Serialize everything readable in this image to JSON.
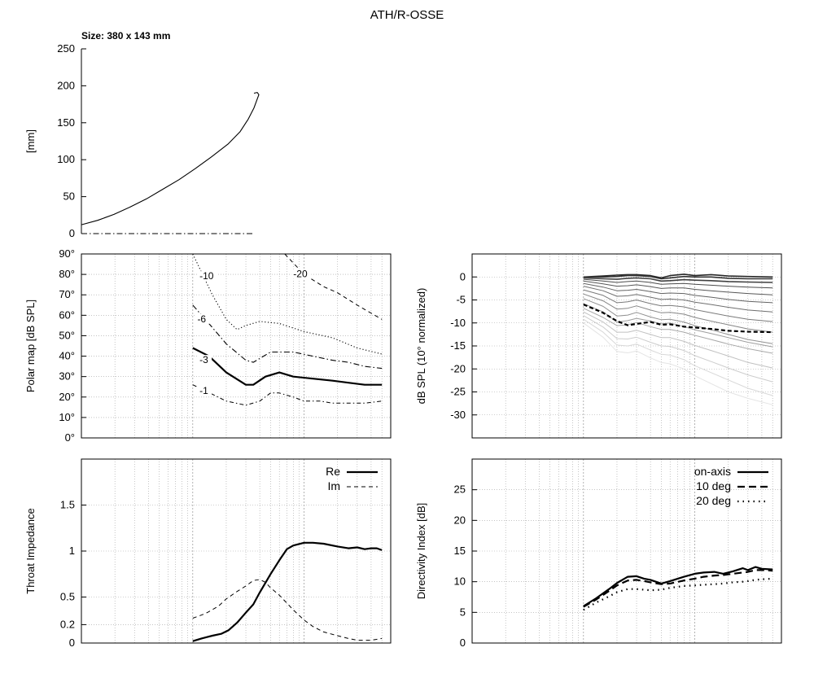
{
  "page": {
    "title": "ATH/R-OSSE",
    "size_label": "Size: 380 x 143 mm"
  },
  "style": {
    "line_color": "#000000",
    "grid_color": "#a0a0a0",
    "frame_color": "#000000"
  },
  "chart_data": [
    {
      "id": "profile",
      "type": "line",
      "ylabel": "[mm]",
      "xlim": [
        0,
        380
      ],
      "ylim": [
        0,
        250
      ],
      "yticks": [
        0,
        50,
        100,
        150,
        200,
        250
      ],
      "series": [
        {
          "style": "solid",
          "points": [
            [
              0,
              12
            ],
            [
              20,
              18
            ],
            [
              40,
              26
            ],
            [
              60,
              36
            ],
            [
              80,
              47
            ],
            [
              100,
              60
            ],
            [
              120,
              73
            ],
            [
              140,
              88
            ],
            [
              160,
              104
            ],
            [
              180,
              121
            ],
            [
              195,
              138
            ],
            [
              205,
              155
            ],
            [
              212,
              170
            ],
            [
              216,
              182
            ],
            [
              218,
              188
            ],
            [
              216,
              191
            ],
            [
              212,
              190
            ]
          ]
        },
        {
          "style": "dashdot",
          "points": [
            [
              0,
              0
            ],
            [
              212,
              0
            ]
          ]
        }
      ]
    },
    {
      "id": "polar-map",
      "type": "line",
      "ylabel": "Polar map [dB SPL]",
      "xscale": "log",
      "xlim": [
        100,
        60000
      ],
      "ylim": [
        0,
        90
      ],
      "yticks": [
        0,
        10,
        20,
        30,
        40,
        50,
        60,
        70,
        80,
        90
      ],
      "ytick_labels": [
        "0°",
        "10°",
        "20°",
        "30°",
        "40°",
        "50°",
        "60°",
        "70°",
        "80°",
        "90°"
      ],
      "contours": [
        {
          "label": "-1",
          "style": "dashdot-thin",
          "label_at": [
            1150,
            22
          ],
          "points": [
            [
              1000,
              26
            ],
            [
              1300,
              23
            ],
            [
              2000,
              18
            ],
            [
              3000,
              16
            ],
            [
              4000,
              18
            ],
            [
              5000,
              22
            ],
            [
              6000,
              22
            ],
            [
              8000,
              20
            ],
            [
              10000,
              18
            ],
            [
              14000,
              18
            ],
            [
              18000,
              17
            ],
            [
              25000,
              17
            ],
            [
              35000,
              17
            ],
            [
              50000,
              18
            ]
          ]
        },
        {
          "label": "-3",
          "style": "solid-thick",
          "label_at": [
            1150,
            37
          ],
          "points": [
            [
              1000,
              44
            ],
            [
              1400,
              40
            ],
            [
              2000,
              32
            ],
            [
              3000,
              26
            ],
            [
              3500,
              26
            ],
            [
              4500,
              30
            ],
            [
              6000,
              32
            ],
            [
              8000,
              30
            ],
            [
              12000,
              29
            ],
            [
              18000,
              28
            ],
            [
              25000,
              27
            ],
            [
              35000,
              26
            ],
            [
              50000,
              26
            ]
          ]
        },
        {
          "label": "-6",
          "style": "dashdot",
          "label_at": [
            1100,
            57
          ],
          "points": [
            [
              1000,
              65
            ],
            [
              1500,
              54
            ],
            [
              2000,
              46
            ],
            [
              3000,
              38
            ],
            [
              3500,
              37
            ],
            [
              5000,
              42
            ],
            [
              8000,
              42
            ],
            [
              12000,
              40
            ],
            [
              18000,
              38
            ],
            [
              25000,
              37
            ],
            [
              35000,
              35
            ],
            [
              50000,
              34
            ]
          ]
        },
        {
          "label": "-10",
          "style": "dotted",
          "label_at": [
            1150,
            78
          ],
          "points": [
            [
              1000,
              90
            ],
            [
              1500,
              70
            ],
            [
              2000,
              58
            ],
            [
              2500,
              53
            ],
            [
              3000,
              55
            ],
            [
              4000,
              57
            ],
            [
              6000,
              56
            ],
            [
              10000,
              52
            ],
            [
              18000,
              49
            ],
            [
              30000,
              44
            ],
            [
              50000,
              41
            ]
          ]
        },
        {
          "label": "-20",
          "style": "dashed",
          "label_at": [
            8000,
            79
          ],
          "points": [
            [
              6700,
              90
            ],
            [
              10000,
              80
            ],
            [
              15000,
              74
            ],
            [
              20000,
              71
            ],
            [
              30000,
              65
            ],
            [
              50000,
              58
            ]
          ]
        }
      ]
    },
    {
      "id": "normalized-spl",
      "type": "line",
      "ylabel": "dB SPL (10° normalized)",
      "xscale": "log",
      "xlim": [
        100,
        60000
      ],
      "ylim": [
        -35,
        5
      ],
      "yticks": [
        -30,
        -25,
        -20,
        -15,
        -10,
        -5,
        0
      ],
      "freq": [
        1000,
        1500,
        2000,
        2500,
        3000,
        4000,
        5000,
        6000,
        8000,
        10000,
        14000,
        20000,
        30000,
        50000
      ],
      "highlight_index": 12,
      "series_values": [
        [
          0.0,
          0.2,
          0.4,
          0.5,
          0.5,
          0.3,
          -0.2,
          0.3,
          0.6,
          0.3,
          0.5,
          0.2,
          0.1,
          0.0
        ],
        [
          0.0,
          0.0,
          0.1,
          0.3,
          0.3,
          0.1,
          -0.4,
          -0.2,
          0.1,
          0.0,
          0.0,
          -0.3,
          -0.4,
          -0.4
        ],
        [
          -0.2,
          -0.4,
          -0.5,
          -0.3,
          -0.2,
          -0.4,
          -0.9,
          -0.8,
          -0.6,
          -0.7,
          -0.8,
          -1.0,
          -1.1,
          -1.2
        ],
        [
          -0.5,
          -0.9,
          -1.2,
          -1.0,
          -0.9,
          -1.2,
          -1.6,
          -1.5,
          -1.4,
          -1.6,
          -1.8,
          -2.0,
          -2.2,
          -2.4
        ],
        [
          -0.9,
          -1.5,
          -2.0,
          -1.9,
          -1.7,
          -2.1,
          -2.5,
          -2.4,
          -2.4,
          -2.7,
          -3.0,
          -3.3,
          -3.6,
          -3.9
        ],
        [
          -1.4,
          -2.2,
          -3.0,
          -2.9,
          -2.7,
          -3.2,
          -3.6,
          -3.5,
          -3.6,
          -4.0,
          -4.4,
          -4.9,
          -5.3,
          -5.6
        ],
        [
          -2.0,
          -3.0,
          -4.2,
          -4.1,
          -3.8,
          -4.4,
          -4.9,
          -4.8,
          -5.0,
          -5.5,
          -6.0,
          -6.6,
          -7.2,
          -7.6
        ],
        [
          -2.8,
          -4.0,
          -5.6,
          -5.4,
          -5.0,
          -5.8,
          -6.3,
          -6.2,
          -6.5,
          -7.1,
          -7.8,
          -8.5,
          -9.2,
          -9.7
        ],
        [
          -3.7,
          -5.2,
          -7.0,
          -6.8,
          -6.3,
          -7.2,
          -7.8,
          -7.7,
          -8.1,
          -8.8,
          -9.6,
          -10.4,
          -11.3,
          -12.0
        ],
        [
          -4.7,
          -6.4,
          -8.5,
          -8.3,
          -7.7,
          -8.7,
          -9.3,
          -9.2,
          -9.8,
          -10.6,
          -11.5,
          -12.5,
          -13.6,
          -14.5
        ],
        [
          -5.8,
          -7.6,
          -9.8,
          -9.5,
          -9.0,
          -9.6,
          -10.2,
          -10.0,
          -10.8,
          -11.5,
          -12.3,
          -13.2,
          -14.2,
          -15.2
        ],
        [
          -6.8,
          -8.8,
          -10.6,
          -10.4,
          -9.9,
          -10.8,
          -11.4,
          -11.4,
          -12.0,
          -12.7,
          -13.6,
          -14.6,
          -15.6,
          -16.6
        ],
        [
          -6.0,
          -7.8,
          -9.6,
          -10.5,
          -10.2,
          -9.8,
          -10.4,
          -10.3,
          -10.8,
          -11.0,
          -11.3,
          -11.7,
          -11.9,
          -12.0
        ],
        [
          -7.6,
          -9.8,
          -12.0,
          -12.0,
          -11.6,
          -12.5,
          -13.2,
          -13.2,
          -14.0,
          -14.9,
          -16.0,
          -17.2,
          -18.6,
          -19.8
        ],
        [
          -8.4,
          -10.9,
          -13.4,
          -13.5,
          -13.1,
          -14.2,
          -15.0,
          -15.1,
          -16.0,
          -17.1,
          -18.4,
          -19.8,
          -21.3,
          -22.8
        ],
        [
          -9.2,
          -12.0,
          -14.8,
          -15.0,
          -14.6,
          -15.9,
          -16.8,
          -17.0,
          -18.0,
          -19.3,
          -20.8,
          -22.4,
          -24.2,
          -25.8
        ],
        [
          -10.0,
          -13.1,
          -16.2,
          -16.5,
          -16.1,
          -17.6,
          -18.6,
          -18.9,
          -20.0,
          -21.5,
          -23.2,
          -25.0,
          -26.4,
          -27.8
        ]
      ]
    },
    {
      "id": "throat-impedance",
      "type": "line",
      "ylabel": "Throat Impedance",
      "xscale": "log",
      "xlim": [
        100,
        60000
      ],
      "ylim": [
        0,
        2
      ],
      "yticks": [
        0,
        0.2,
        0.5,
        1,
        1.5
      ],
      "ytick_labels": [
        "0",
        "0.2",
        "0.5",
        "1",
        "1.5"
      ],
      "series": [
        {
          "name": "Re",
          "style": "solid-thick",
          "x": [
            1000,
            1200,
            1500,
            1800,
            2100,
            2500,
            3000,
            3500,
            4000,
            5000,
            6000,
            7000,
            8000,
            10000,
            12000,
            15000,
            20000,
            25000,
            30000,
            35000,
            40000,
            45000,
            50000
          ],
          "y": [
            0.02,
            0.05,
            0.08,
            0.1,
            0.14,
            0.22,
            0.33,
            0.42,
            0.55,
            0.75,
            0.9,
            1.02,
            1.06,
            1.09,
            1.09,
            1.08,
            1.05,
            1.03,
            1.04,
            1.02,
            1.03,
            1.03,
            1.01
          ]
        },
        {
          "name": "Im",
          "style": "dashed",
          "x": [
            1000,
            1300,
            1700,
            2000,
            2500,
            3000,
            3500,
            4000,
            4500,
            5000,
            6000,
            8000,
            10000,
            12000,
            15000,
            20000,
            25000,
            30000,
            40000,
            50000
          ],
          "y": [
            0.27,
            0.32,
            0.4,
            0.48,
            0.56,
            0.62,
            0.68,
            0.69,
            0.66,
            0.6,
            0.52,
            0.36,
            0.25,
            0.18,
            0.12,
            0.08,
            0.05,
            0.03,
            0.03,
            0.05
          ]
        }
      ]
    },
    {
      "id": "directivity-index",
      "type": "line",
      "ylabel": "Directivity Index [dB]",
      "xscale": "log",
      "xlim": [
        100,
        60000
      ],
      "ylim": [
        0,
        30
      ],
      "yticks": [
        0,
        5,
        10,
        15,
        20,
        25
      ],
      "series": [
        {
          "name": "on-axis",
          "style": "solid-thick",
          "x": [
            1000,
            1300,
            1700,
            2000,
            2500,
            3000,
            3500,
            4000,
            5000,
            6000,
            8000,
            10000,
            12000,
            15000,
            18000,
            22000,
            27000,
            30000,
            35000,
            40000,
            50000
          ],
          "y": [
            6.0,
            7.3,
            8.8,
            9.8,
            10.8,
            10.9,
            10.5,
            10.3,
            9.7,
            10.1,
            10.8,
            11.3,
            11.5,
            11.6,
            11.3,
            11.7,
            12.2,
            11.9,
            12.4,
            12.1,
            12.0
          ]
        },
        {
          "name": "10 deg",
          "style": "dashed-thick",
          "x": [
            1000,
            1300,
            1700,
            2000,
            2500,
            3000,
            3500,
            4000,
            5000,
            6000,
            8000,
            10000,
            12000,
            15000,
            18000,
            22000,
            27000,
            30000,
            35000,
            40000,
            50000
          ],
          "y": [
            5.9,
            7.1,
            8.5,
            9.4,
            10.2,
            10.3,
            10.1,
            9.9,
            9.6,
            9.7,
            10.2,
            10.5,
            10.8,
            11.0,
            11.1,
            11.3,
            11.5,
            11.6,
            11.9,
            11.9,
            11.8
          ]
        },
        {
          "name": "20 deg",
          "style": "dotted-thick",
          "x": [
            1000,
            1300,
            1700,
            2000,
            2500,
            3000,
            3500,
            4000,
            5000,
            6000,
            8000,
            10000,
            12000,
            15000,
            18000,
            22000,
            27000,
            30000,
            35000,
            40000,
            50000
          ],
          "y": [
            5.4,
            6.6,
            7.6,
            8.3,
            8.8,
            8.8,
            8.7,
            8.6,
            8.7,
            9.0,
            9.3,
            9.4,
            9.5,
            9.6,
            9.7,
            9.9,
            10.0,
            10.1,
            10.3,
            10.4,
            10.5
          ]
        }
      ]
    }
  ]
}
